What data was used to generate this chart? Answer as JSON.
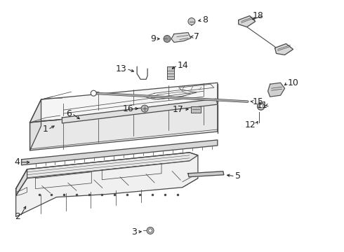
{
  "bg_color": "#ffffff",
  "line_color": "#4a4a4a",
  "label_color": "#222222",
  "lw_main": 0.9,
  "lw_thin": 0.55,
  "fig_w": 4.9,
  "fig_h": 3.6,
  "dpi": 100
}
